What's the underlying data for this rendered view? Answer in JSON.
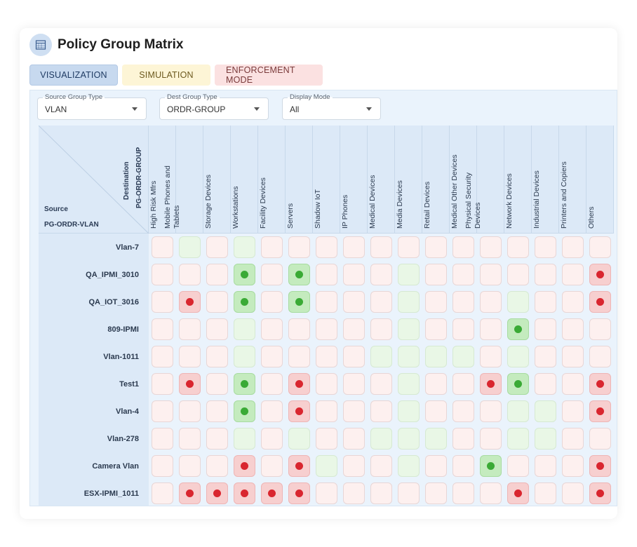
{
  "header": {
    "title": "Policy Group Matrix",
    "icon": "grid-icon"
  },
  "tabs": [
    {
      "label": "VISUALIZATION",
      "active": true
    },
    {
      "label": "SIMULATION",
      "active": false
    },
    {
      "label": "ENFORCEMENT MODE",
      "active": false
    }
  ],
  "filters": {
    "source_type": {
      "label": "Source Group Type",
      "value": "VLAN"
    },
    "dest_type": {
      "label": "Dest Group Type",
      "value": "ORDR-GROUP"
    },
    "display_mode": {
      "label": "Display Mode",
      "value": "All"
    }
  },
  "corner": {
    "destination_label": "Destination",
    "destination_group": "PG-ORDR-GROUP",
    "source_label": "Source",
    "source_group": "PG-ORDR-VLAN"
  },
  "columns": [
    [
      "High Risk Mfrs"
    ],
    [
      "Mobile Phones and",
      "Tablets"
    ],
    [
      "Storage Devices"
    ],
    [
      "Workstations"
    ],
    [
      "Facility Devices"
    ],
    [
      "Servers"
    ],
    [
      "Shadow IoT"
    ],
    [
      "IP Phones"
    ],
    [
      "Medical Devices"
    ],
    [
      "Media Devices"
    ],
    [
      "Retail Devices"
    ],
    [
      "Medical Other Devices"
    ],
    [
      "Physical Security",
      "Devices"
    ],
    [
      "Network Devices"
    ],
    [
      "Industrial Devices"
    ],
    [
      "Printers and Copiers"
    ],
    [
      "Others"
    ]
  ],
  "rows": [
    "Vlan-7",
    "QA_IPMI_3010",
    "QA_IOT_3016",
    "809-IPMI",
    "Vlan-1011",
    "Test1",
    "Vlan-4",
    "Vlan-278",
    "Camera Vlan",
    "ESX-IPMI_1011"
  ],
  "matrix": [
    [
      "p",
      "g",
      "p",
      "g",
      "p",
      "p",
      "p",
      "p",
      "p",
      "p",
      "p",
      "p",
      "p",
      "p",
      "p",
      "p",
      "p"
    ],
    [
      "p",
      "p",
      "p",
      "G",
      "p",
      "G",
      "p",
      "p",
      "p",
      "g",
      "p",
      "p",
      "p",
      "p",
      "p",
      "p",
      "R"
    ],
    [
      "p",
      "R",
      "p",
      "G",
      "p",
      "G",
      "p",
      "p",
      "p",
      "g",
      "p",
      "p",
      "p",
      "g",
      "p",
      "p",
      "R"
    ],
    [
      "p",
      "p",
      "p",
      "g",
      "p",
      "p",
      "p",
      "p",
      "p",
      "g",
      "p",
      "p",
      "p",
      "G",
      "p",
      "p",
      "p"
    ],
    [
      "p",
      "p",
      "p",
      "g",
      "p",
      "p",
      "p",
      "p",
      "g",
      "g",
      "g",
      "g",
      "p",
      "g",
      "p",
      "p",
      "p"
    ],
    [
      "p",
      "R",
      "p",
      "G",
      "p",
      "R",
      "p",
      "p",
      "p",
      "g",
      "p",
      "p",
      "R",
      "G",
      "p",
      "p",
      "R"
    ],
    [
      "p",
      "p",
      "p",
      "G",
      "p",
      "R",
      "p",
      "p",
      "p",
      "g",
      "p",
      "p",
      "p",
      "g",
      "g",
      "p",
      "R"
    ],
    [
      "p",
      "p",
      "p",
      "g",
      "p",
      "g",
      "p",
      "p",
      "g",
      "g",
      "g",
      "p",
      "p",
      "g",
      "g",
      "p",
      "p"
    ],
    [
      "p",
      "p",
      "p",
      "R",
      "p",
      "R",
      "g",
      "p",
      "p",
      "g",
      "p",
      "p",
      "G",
      "p",
      "p",
      "p",
      "R"
    ],
    [
      "p",
      "R",
      "R",
      "R",
      "R",
      "R",
      "p",
      "p",
      "p",
      "p",
      "p",
      "p",
      "p",
      "R",
      "p",
      "p",
      "R"
    ]
  ],
  "legend_colors": {
    "red": "#d9262f",
    "green": "#3aaa35",
    "accent": "#c7d9ef"
  }
}
